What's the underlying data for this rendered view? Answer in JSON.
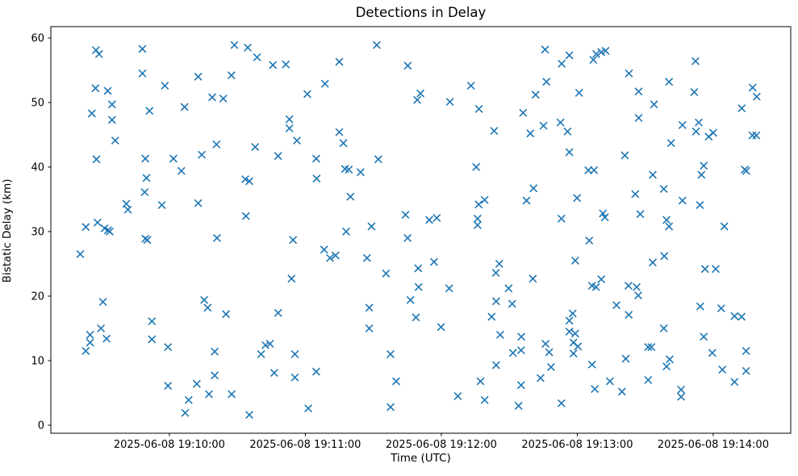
{
  "figure": {
    "background": "#ffffff",
    "spine_color": "#000000"
  },
  "chart_data": {
    "type": "scatter",
    "title": "Detections in Delay",
    "xlabel": "Time (UTC)",
    "ylabel": "Bistatic Delay (km)",
    "marker": "x",
    "marker_color": "#1f77b4",
    "grid": false,
    "legend": "none",
    "x_unit": "seconds relative to 2025-06-08 19:10:00 UTC",
    "xlim": [
      -52.3,
      274.2
    ],
    "ylim": [
      -1.25,
      61.75
    ],
    "x_ticks": [
      {
        "value": 0,
        "label": "2025-06-08 19:10:00"
      },
      {
        "value": 60,
        "label": "2025-06-08 19:11:00"
      },
      {
        "value": 120,
        "label": "2025-06-08 19:12:00"
      },
      {
        "value": 180,
        "label": "2025-06-08 19:13:00"
      },
      {
        "value": 240,
        "label": "2025-06-08 19:14:00"
      }
    ],
    "y_ticks": [
      0,
      10,
      20,
      30,
      40,
      50,
      60
    ],
    "points": [
      [
        -32.4,
        58.1
      ],
      [
        -31,
        57.5
      ],
      [
        -11.9,
        58.3
      ],
      [
        28.7,
        58.9
      ],
      [
        -11.9,
        54.5
      ],
      [
        12.7,
        54
      ],
      [
        27.4,
        54.2
      ],
      [
        -32.6,
        52.2
      ],
      [
        -27.2,
        51.8
      ],
      [
        -2,
        52.6
      ],
      [
        18.9,
        50.8
      ],
      [
        23.8,
        50.6
      ],
      [
        -25.3,
        49.7
      ],
      [
        -8.8,
        48.7
      ],
      [
        6.7,
        49.3
      ],
      [
        -34.2,
        48.3
      ],
      [
        -25.3,
        47.3
      ],
      [
        -23.9,
        44.1
      ],
      [
        20.8,
        43.5
      ],
      [
        -32.2,
        41.2
      ],
      [
        -10.6,
        41.3
      ],
      [
        1.8,
        41.3
      ],
      [
        14.3,
        41.9
      ],
      [
        34.6,
        58.5
      ],
      [
        38.7,
        57
      ],
      [
        45.7,
        55.8
      ],
      [
        51.4,
        55.9
      ],
      [
        75,
        56.3
      ],
      [
        91.5,
        58.9
      ],
      [
        105.2,
        55.7
      ],
      [
        68.7,
        52.9
      ],
      [
        60.9,
        51.3
      ],
      [
        110.8,
        51.4
      ],
      [
        109.4,
        50.4
      ],
      [
        53,
        47.4
      ],
      [
        53,
        46
      ],
      [
        56.3,
        44.1
      ],
      [
        75,
        45.4
      ],
      [
        76.8,
        43.7
      ],
      [
        37.9,
        43.1
      ],
      [
        48,
        41.7
      ],
      [
        64.8,
        41.3
      ],
      [
        92.2,
        41.2
      ],
      [
        165.8,
        58.2
      ],
      [
        176.5,
        57.3
      ],
      [
        173.1,
        56
      ],
      [
        187.1,
        56.6
      ],
      [
        188.4,
        57.5
      ],
      [
        190.6,
        57.8
      ],
      [
        192.5,
        58
      ],
      [
        123.8,
        50.1
      ],
      [
        133.1,
        52.6
      ],
      [
        136.6,
        49
      ],
      [
        166.4,
        53.2
      ],
      [
        161.6,
        51.2
      ],
      [
        180.8,
        51.5
      ],
      [
        156.1,
        48.4
      ],
      [
        143.3,
        45.6
      ],
      [
        159.3,
        45.2
      ],
      [
        165.1,
        46.4
      ],
      [
        172.6,
        46.9
      ],
      [
        175.7,
        45.5
      ],
      [
        176.5,
        42.3
      ],
      [
        232.2,
        56.4
      ],
      [
        202.8,
        54.5
      ],
      [
        220.5,
        53.2
      ],
      [
        207.1,
        51.7
      ],
      [
        231.6,
        51.6
      ],
      [
        213.9,
        49.7
      ],
      [
        257.4,
        52.3
      ],
      [
        259.2,
        50.9
      ],
      [
        252.6,
        49.1
      ],
      [
        207.1,
        47.6
      ],
      [
        226.4,
        46.5
      ],
      [
        233.6,
        46.9
      ],
      [
        232.4,
        45.5
      ],
      [
        238,
        44.7
      ],
      [
        240,
        45.3
      ],
      [
        257.3,
        44.9
      ],
      [
        259,
        44.9
      ],
      [
        221.4,
        43.7
      ],
      [
        201,
        41.8
      ],
      [
        5.3,
        39.4
      ],
      [
        -10.1,
        38.3
      ],
      [
        -10.9,
        36.1
      ],
      [
        -19,
        34.3
      ],
      [
        -18.3,
        33.4
      ],
      [
        -3.3,
        34.1
      ],
      [
        12.7,
        34.4
      ],
      [
        -31.7,
        31.4
      ],
      [
        -36.9,
        30.7
      ],
      [
        -28.6,
        30.5
      ],
      [
        -27.1,
        30.2
      ],
      [
        -26.3,
        30
      ],
      [
        -10.6,
        28.9
      ],
      [
        -9.7,
        28.7
      ],
      [
        21,
        29
      ],
      [
        -39.3,
        26.5
      ],
      [
        33.5,
        38.1
      ],
      [
        35.3,
        37.8
      ],
      [
        65,
        38.2
      ],
      [
        77.5,
        39.7
      ],
      [
        79.2,
        39.6
      ],
      [
        84.4,
        39.2
      ],
      [
        79.9,
        35.4
      ],
      [
        33.8,
        32.4
      ],
      [
        104.2,
        32.6
      ],
      [
        89.2,
        30.8
      ],
      [
        78,
        30
      ],
      [
        105.1,
        29
      ],
      [
        54.6,
        28.7
      ],
      [
        68.3,
        27.2
      ],
      [
        70.9,
        25.9
      ],
      [
        73.3,
        26.3
      ],
      [
        87.2,
        25.9
      ],
      [
        95.6,
        23.5
      ],
      [
        109.8,
        24.3
      ],
      [
        53.9,
        22.7
      ],
      [
        110,
        21.4
      ],
      [
        106.4,
        19.4
      ],
      [
        135.4,
        40
      ],
      [
        184.9,
        39.5
      ],
      [
        187.4,
        39.5
      ],
      [
        160.7,
        36.7
      ],
      [
        139.1,
        34.9
      ],
      [
        136.5,
        34.2
      ],
      [
        157.6,
        34.8
      ],
      [
        179.9,
        35.2
      ],
      [
        114.7,
        31.8
      ],
      [
        118,
        32.1
      ],
      [
        136,
        32
      ],
      [
        136,
        31
      ],
      [
        173,
        32
      ],
      [
        191.3,
        32.8
      ],
      [
        192.2,
        32.2
      ],
      [
        185.3,
        28.6
      ],
      [
        116.8,
        25.3
      ],
      [
        145.6,
        25
      ],
      [
        144.1,
        23.6
      ],
      [
        179.1,
        25.5
      ],
      [
        160.4,
        22.7
      ],
      [
        190.6,
        22.6
      ],
      [
        186.5,
        21.6
      ],
      [
        188.3,
        21.4
      ],
      [
        123.5,
        21.2
      ],
      [
        149.7,
        21.2
      ],
      [
        235.8,
        40.2
      ],
      [
        253.9,
        39.6
      ],
      [
        254.6,
        39.4
      ],
      [
        213.3,
        38.8
      ],
      [
        234.8,
        38.8
      ],
      [
        218.2,
        36.6
      ],
      [
        205.6,
        35.8
      ],
      [
        226.4,
        34.8
      ],
      [
        234.1,
        34.1
      ],
      [
        207.8,
        32.7
      ],
      [
        219.4,
        31.8
      ],
      [
        220.5,
        30.8
      ],
      [
        244.9,
        30.8
      ],
      [
        218.4,
        26.2
      ],
      [
        213.3,
        25.2
      ],
      [
        236.4,
        24.2
      ],
      [
        241.1,
        24.2
      ],
      [
        202.6,
        21.6
      ],
      [
        206.2,
        21.4
      ],
      [
        206.9,
        20.1
      ],
      [
        -29.3,
        19.1
      ],
      [
        15.4,
        19.4
      ],
      [
        16.9,
        18.2
      ],
      [
        25,
        17.2
      ],
      [
        -7.7,
        16.1
      ],
      [
        -30.2,
        15
      ],
      [
        -35,
        14
      ],
      [
        -35,
        12.8
      ],
      [
        -27.7,
        13.4
      ],
      [
        -36.9,
        11.5
      ],
      [
        -7.7,
        13.3
      ],
      [
        -0.6,
        12.1
      ],
      [
        20,
        11.4
      ],
      [
        20,
        7.7
      ],
      [
        -0.6,
        6.1
      ],
      [
        12.1,
        6.4
      ],
      [
        17.5,
        4.8
      ],
      [
        27.5,
        4.8
      ],
      [
        8.5,
        3.9
      ],
      [
        7,
        1.9
      ],
      [
        88.2,
        18.2
      ],
      [
        48,
        17.4
      ],
      [
        108.8,
        16.7
      ],
      [
        88.2,
        15
      ],
      [
        42.4,
        12.4
      ],
      [
        44.4,
        12.6
      ],
      [
        40.5,
        11
      ],
      [
        55.4,
        11
      ],
      [
        46.3,
        8.1
      ],
      [
        55.4,
        7.4
      ],
      [
        64.8,
        8.3
      ],
      [
        97.6,
        11
      ],
      [
        100.1,
        6.8
      ],
      [
        61.3,
        2.6
      ],
      [
        35.3,
        1.6
      ],
      [
        97.6,
        2.8
      ],
      [
        144.2,
        19.2
      ],
      [
        151.3,
        18.8
      ],
      [
        142.2,
        16.8
      ],
      [
        119.9,
        15.2
      ],
      [
        178,
        17.3
      ],
      [
        176.5,
        16.2
      ],
      [
        146,
        14
      ],
      [
        155.3,
        13.7
      ],
      [
        176.5,
        14.5
      ],
      [
        179.1,
        14.2
      ],
      [
        166,
        12.6
      ],
      [
        178.3,
        12.8
      ],
      [
        180.3,
        12.2
      ],
      [
        151.6,
        11.2
      ],
      [
        155.2,
        11.6
      ],
      [
        167.6,
        11.3
      ],
      [
        178.3,
        11.1
      ],
      [
        144.2,
        9.3
      ],
      [
        168.4,
        9
      ],
      [
        186.5,
        9.4
      ],
      [
        163.8,
        7.3
      ],
      [
        137.3,
        6.8
      ],
      [
        155.2,
        6.2
      ],
      [
        187.7,
        5.6
      ],
      [
        127.3,
        4.5
      ],
      [
        139.1,
        3.9
      ],
      [
        154.1,
        3
      ],
      [
        173,
        3.4
      ],
      [
        197.3,
        18.6
      ],
      [
        202.7,
        17.1
      ],
      [
        218.2,
        15
      ],
      [
        234.3,
        18.4
      ],
      [
        243.5,
        18.1
      ],
      [
        249.4,
        16.9
      ],
      [
        252.5,
        16.8
      ],
      [
        235.8,
        13.7
      ],
      [
        211.3,
        12.1
      ],
      [
        212.7,
        12.1
      ],
      [
        201.4,
        10.3
      ],
      [
        220.8,
        10.2
      ],
      [
        219.4,
        9.1
      ],
      [
        239.6,
        11.2
      ],
      [
        254.5,
        11.5
      ],
      [
        244,
        8.6
      ],
      [
        254.5,
        8.4
      ],
      [
        249.4,
        6.7
      ],
      [
        194.4,
        6.8
      ],
      [
        211.3,
        7
      ],
      [
        199.7,
        5.2
      ],
      [
        225.8,
        5.5
      ],
      [
        225.8,
        4.4
      ]
    ]
  }
}
